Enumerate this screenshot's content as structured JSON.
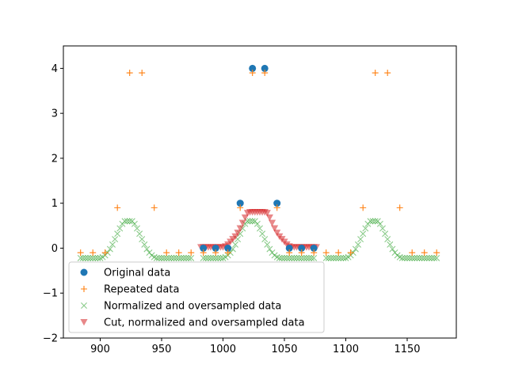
{
  "chart_data": {
    "type": "scatter",
    "title": "",
    "xlabel": "",
    "ylabel": "",
    "xlim": [
      870,
      1190
    ],
    "ylim": [
      -2,
      4.5
    ],
    "xticks": [
      900,
      950,
      1000,
      1050,
      1100,
      1150
    ],
    "yticks": [
      -2,
      -1,
      0,
      1,
      2,
      3,
      4
    ],
    "grid": false,
    "legend_position": "lower-left",
    "series": [
      {
        "name": "Original data",
        "marker": "circle",
        "color": "#1f77b4",
        "x": [
          984,
          994,
          1004,
          1014,
          1024,
          1034,
          1044,
          1054,
          1064,
          1074
        ],
        "y": [
          0,
          0,
          0,
          1,
          4,
          4,
          1,
          0,
          0,
          0
        ]
      },
      {
        "name": "Repeated data",
        "marker": "plus",
        "color": "#ff7f0e",
        "x": [
          884,
          894,
          904,
          914,
          924,
          934,
          944,
          954,
          964,
          974,
          984,
          994,
          1004,
          1014,
          1024,
          1034,
          1044,
          1054,
          1064,
          1074,
          1084,
          1094,
          1104,
          1114,
          1124,
          1134,
          1144,
          1154,
          1164,
          1174
        ],
        "y": [
          -0.1,
          -0.1,
          -0.1,
          0.9,
          3.9,
          3.9,
          0.9,
          -0.1,
          -0.1,
          -0.1,
          -0.1,
          -0.1,
          -0.1,
          0.9,
          3.9,
          3.9,
          0.9,
          -0.1,
          -0.1,
          -0.1,
          -0.1,
          -0.1,
          -0.1,
          0.9,
          3.9,
          3.9,
          0.9,
          -0.1,
          -0.1,
          -0.1
        ]
      },
      {
        "name": "Normalized and oversampled data",
        "marker": "x",
        "color": "#2ca02c",
        "repeats": [
          884,
          984,
          1084
        ],
        "profile": [
          [
            0,
            -0.22
          ],
          [
            2,
            -0.22
          ],
          [
            4,
            -0.22
          ],
          [
            6,
            -0.22
          ],
          [
            8,
            -0.22
          ],
          [
            10,
            -0.22
          ],
          [
            12,
            -0.22
          ],
          [
            14,
            -0.22
          ],
          [
            16,
            -0.22
          ],
          [
            18,
            -0.2
          ],
          [
            20,
            -0.16
          ],
          [
            22,
            -0.1
          ],
          [
            24,
            -0.02
          ],
          [
            26,
            0.08
          ],
          [
            28,
            0.2
          ],
          [
            30,
            0.32
          ],
          [
            32,
            0.44
          ],
          [
            34,
            0.54
          ],
          [
            36,
            0.6
          ],
          [
            38,
            0.6
          ],
          [
            40,
            0.6
          ],
          [
            42,
            0.6
          ],
          [
            44,
            0.54
          ],
          [
            46,
            0.44
          ],
          [
            48,
            0.32
          ],
          [
            50,
            0.2
          ],
          [
            52,
            0.08
          ],
          [
            54,
            -0.02
          ],
          [
            56,
            -0.1
          ],
          [
            58,
            -0.16
          ],
          [
            60,
            -0.2
          ],
          [
            62,
            -0.22
          ],
          [
            64,
            -0.22
          ],
          [
            66,
            -0.22
          ],
          [
            68,
            -0.22
          ],
          [
            70,
            -0.22
          ],
          [
            72,
            -0.22
          ],
          [
            74,
            -0.22
          ],
          [
            76,
            -0.22
          ],
          [
            78,
            -0.22
          ],
          [
            80,
            -0.22
          ],
          [
            82,
            -0.22
          ],
          [
            84,
            -0.22
          ],
          [
            86,
            -0.22
          ],
          [
            88,
            -0.22
          ],
          [
            90,
            -0.22
          ]
        ]
      },
      {
        "name": "Cut, normalized and oversampled data",
        "marker": "triangle_down",
        "color": "#d62728",
        "points": [
          [
            982,
            0.02
          ],
          [
            984,
            0.02
          ],
          [
            986,
            0.02
          ],
          [
            988,
            0.02
          ],
          [
            990,
            0.02
          ],
          [
            992,
            0.02
          ],
          [
            994,
            0.02
          ],
          [
            996,
            0.02
          ],
          [
            998,
            0.02
          ],
          [
            1000,
            0.02
          ],
          [
            1002,
            0.04
          ],
          [
            1004,
            0.08
          ],
          [
            1006,
            0.14
          ],
          [
            1008,
            0.2
          ],
          [
            1010,
            0.26
          ],
          [
            1012,
            0.34
          ],
          [
            1014,
            0.44
          ],
          [
            1016,
            0.56
          ],
          [
            1018,
            0.68
          ],
          [
            1020,
            0.78
          ],
          [
            1022,
            0.8
          ],
          [
            1024,
            0.8
          ],
          [
            1026,
            0.8
          ],
          [
            1028,
            0.8
          ],
          [
            1030,
            0.8
          ],
          [
            1032,
            0.8
          ],
          [
            1034,
            0.8
          ],
          [
            1036,
            0.78
          ],
          [
            1038,
            0.68
          ],
          [
            1040,
            0.56
          ],
          [
            1042,
            0.44
          ],
          [
            1044,
            0.34
          ],
          [
            1046,
            0.26
          ],
          [
            1048,
            0.2
          ],
          [
            1050,
            0.14
          ],
          [
            1052,
            0.08
          ],
          [
            1054,
            0.04
          ],
          [
            1056,
            0.02
          ],
          [
            1058,
            0.02
          ],
          [
            1060,
            0.02
          ],
          [
            1062,
            0.02
          ],
          [
            1064,
            0.02
          ],
          [
            1066,
            0.02
          ],
          [
            1068,
            0.02
          ],
          [
            1070,
            0.02
          ],
          [
            1072,
            0.02
          ],
          [
            1074,
            0.02
          ],
          [
            1076,
            0.02
          ]
        ]
      }
    ]
  }
}
